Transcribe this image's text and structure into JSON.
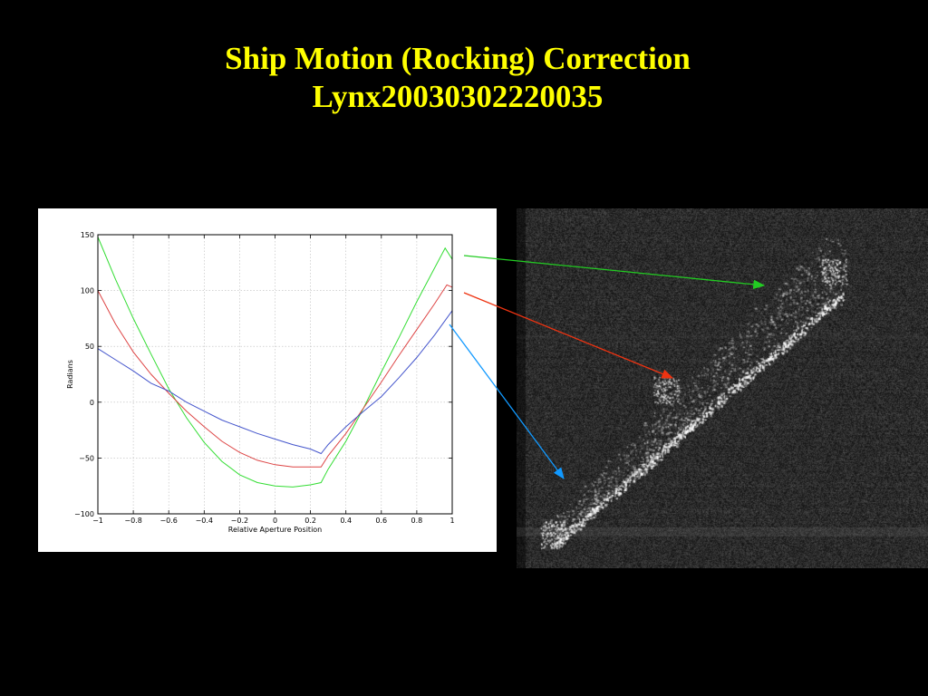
{
  "slide": {
    "title_line1": "Ship Motion (Rocking) Correction",
    "title_line2": "Lynx20030302220035"
  },
  "colors": {
    "title": "#ffff00",
    "green_arrow": "#22cc22",
    "red_arrow": "#ee3311",
    "blue_arrow": "#1199ff"
  },
  "chart_data": {
    "type": "line",
    "xlabel": "Relative Aperture Position",
    "ylabel": "Radians",
    "xlim": [
      -1,
      1
    ],
    "ylim": [
      -100,
      150
    ],
    "xticks": [
      -1,
      -0.8,
      -0.6,
      -0.4,
      -0.2,
      0,
      0.2,
      0.4,
      0.6,
      0.8,
      1
    ],
    "xtick_labels": [
      "−1",
      "−0.8",
      "−0.6",
      "−0.4",
      "−0.2",
      "0",
      "0.2",
      "0.4",
      "0.6",
      "0.8",
      "1"
    ],
    "yticks": [
      -100,
      -50,
      0,
      50,
      100,
      150
    ],
    "ytick_labels": [
      "−100",
      "−50",
      "0",
      "50",
      "100",
      "150"
    ],
    "grid": true,
    "series": [
      {
        "color": "#33dd33",
        "x": [
          -1,
          -0.9,
          -0.8,
          -0.7,
          -0.6,
          -0.5,
          -0.4,
          -0.3,
          -0.2,
          -0.1,
          0,
          0.1,
          0.2,
          0.26,
          0.3,
          0.4,
          0.5,
          0.6,
          0.7,
          0.8,
          0.9,
          0.96,
          1
        ],
        "y": [
          148,
          110,
          75,
          43,
          12,
          -14,
          -36,
          -53,
          -65,
          -72,
          -75,
          -76,
          -74,
          -72,
          -60,
          -35,
          -5,
          27,
          58,
          90,
          120,
          138,
          128
        ]
      },
      {
        "color": "#dd4444",
        "x": [
          -1,
          -0.9,
          -0.8,
          -0.7,
          -0.6,
          -0.5,
          -0.4,
          -0.3,
          -0.2,
          -0.1,
          0,
          0.1,
          0.2,
          0.26,
          0.3,
          0.4,
          0.5,
          0.6,
          0.7,
          0.8,
          0.9,
          0.97,
          1
        ],
        "y": [
          100,
          70,
          45,
          25,
          8,
          -8,
          -22,
          -35,
          -45,
          -52,
          -56,
          -58,
          -58,
          -58,
          -48,
          -28,
          -5,
          18,
          42,
          65,
          88,
          105,
          103
        ]
      },
      {
        "color": "#4455cc",
        "x": [
          -1,
          -0.9,
          -0.8,
          -0.7,
          -0.6,
          -0.5,
          -0.4,
          -0.3,
          -0.2,
          -0.1,
          0,
          0.1,
          0.2,
          0.26,
          0.3,
          0.4,
          0.5,
          0.6,
          0.7,
          0.8,
          0.9,
          1
        ],
        "y": [
          48,
          38,
          28,
          17,
          10,
          0,
          -8,
          -16,
          -22,
          -28,
          -33,
          -38,
          -42,
          -46,
          -38,
          -22,
          -8,
          5,
          22,
          40,
          60,
          82
        ]
      }
    ]
  }
}
